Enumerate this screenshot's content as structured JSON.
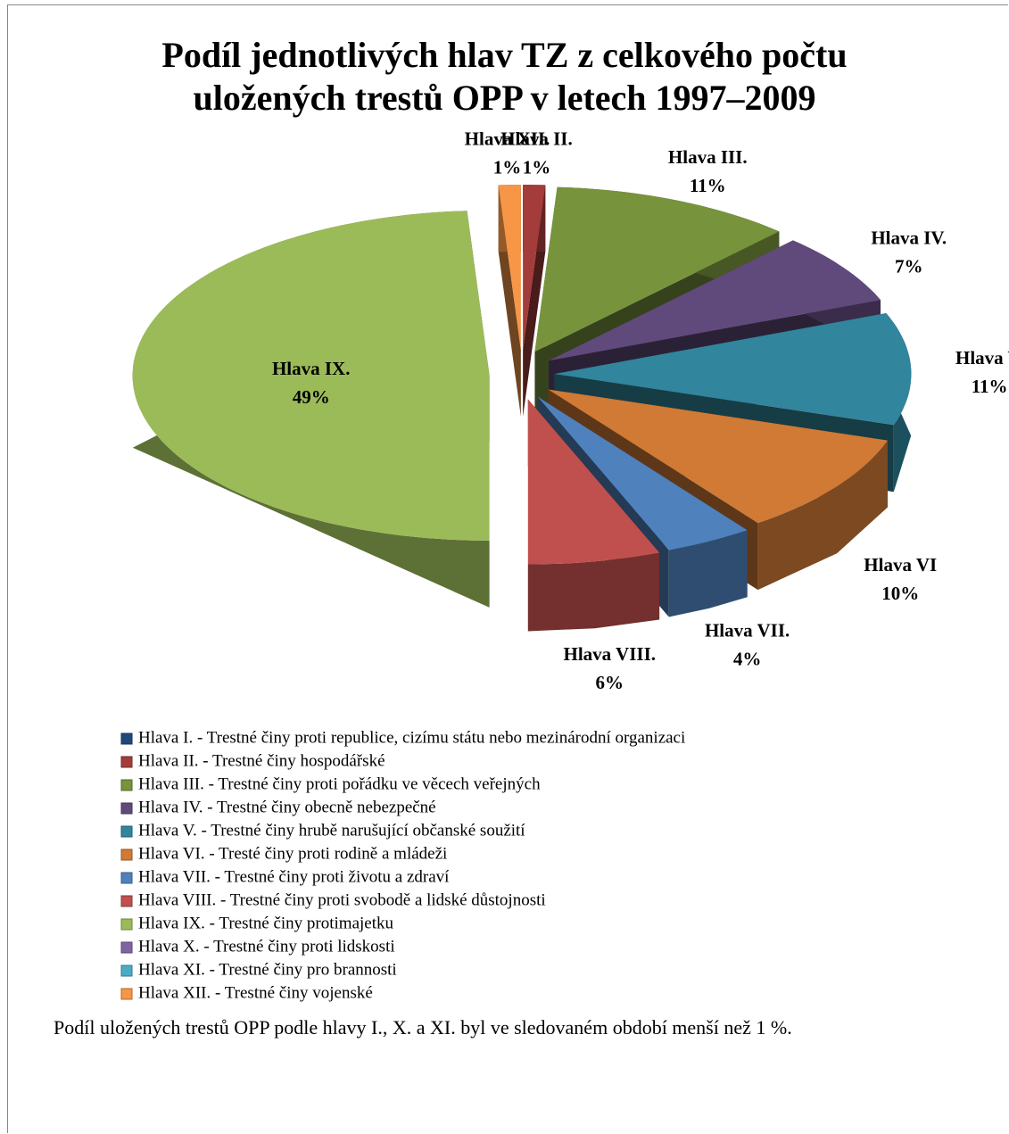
{
  "chart_data": {
    "type": "pie3d",
    "title": "Podíl jednotlivých hlav TZ z celkového počtu\nuložených trestů OPP v letech 1997–2009",
    "categories": [
      "Hlava I. - Trestné činy proti republice, cizímu státu nebo mezinárodní organizaci",
      "Hlava II. - Trestné činy hospodářské",
      "Hlava III. - Trestné činy proti pořádku ve věcech veřejných",
      "Hlava IV. - Trestné činy obecně nebezpečné",
      "Hlava V. - Trestné činy hrubě narušující občanské soužití",
      "Hlava VI. - Tresté činy proti rodině a mládeži",
      "Hlava VII. - Trestné činy proti životu a zdraví",
      "Hlava VIII. - Trestné činy proti svobodě a lidské důstojnosti",
      "Hlava IX. - Trestné činy protimajetku",
      "Hlava X. - Trestné činy proti lidskosti",
      "Hlava XI. - Trestné činy pro brannosti",
      "Hlava XII. - Trestné činy vojenské"
    ],
    "values": [
      0,
      1,
      11,
      7,
      11,
      10,
      4,
      6,
      49,
      0,
      0,
      1
    ],
    "value_labels": [
      null,
      "1%",
      "11%",
      "7%",
      "11%",
      "10%",
      "4%",
      "6%",
      "49%",
      null,
      null,
      "1%"
    ],
    "label_names": [
      null,
      "Hlava II.",
      "Hlava III.",
      "Hlava IV.",
      "Hlava V.",
      "Hlava VI",
      "Hlava VII.",
      "Hlava VIII.",
      "Hlava IX.",
      null,
      null,
      "Hlava XII."
    ],
    "colors": [
      "#1f497d",
      "#a33c3a",
      "#77933c",
      "#604a7b",
      "#31859c",
      "#d07a35",
      "#4f81bd",
      "#c0504d",
      "#9bbb59",
      "#8064a2",
      "#4bacc6",
      "#f79646"
    ],
    "legend": "bottom"
  },
  "note": "Podíl uložených trestů OPP podle hlavy I., X. a XI. byl ve sledovaném období menší než 1 %."
}
